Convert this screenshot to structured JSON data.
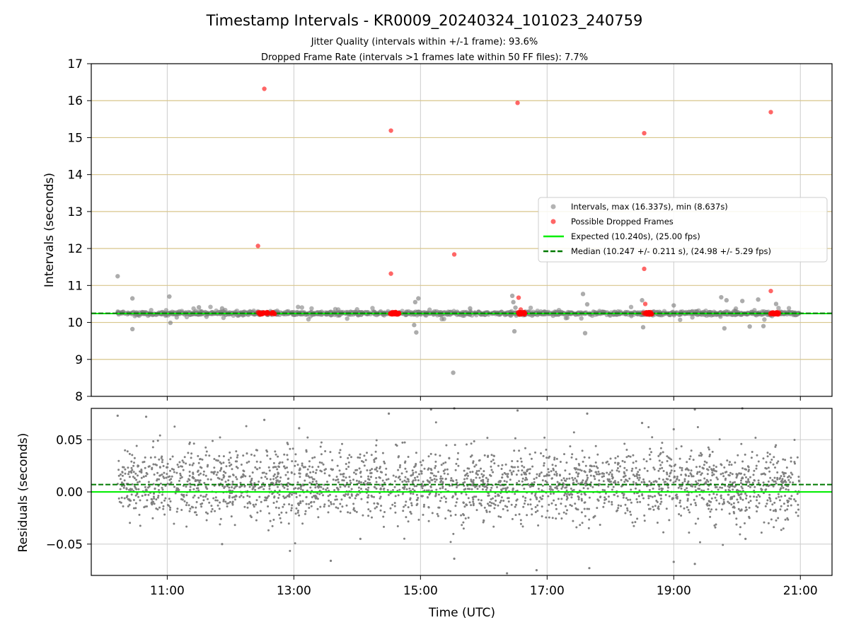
{
  "title": "Timestamp Intervals - KR0009_20240324_101023_240759",
  "subtitle_lines": [
    "Jitter Quality (intervals within +/-1 frame): 93.6%",
    "Dropped Frame Rate (intervals >1 frames late within 50 FF files): 7.7%"
  ],
  "colors": {
    "intervals": "#808080",
    "dropped": "#ff0000",
    "expected": "#00ee00",
    "median": "#007a00",
    "hgrid_top": "#d8c68c",
    "grid": "#cccccc"
  },
  "chart_data": [
    {
      "type": "scatter",
      "ylabel": "Intervals (seconds)",
      "ylim": [
        8,
        17
      ],
      "yticks": [
        "8",
        "9",
        "10",
        "11",
        "12",
        "13",
        "14",
        "15",
        "16",
        "17"
      ],
      "xlim": [
        "09:48",
        "21:30"
      ],
      "grid": true,
      "legend_position": "center-right",
      "legend": [
        "Intervals, max (16.337s), min (8.637s)",
        "Possible Dropped Frames",
        "Expected (10.240s), (25.00 fps)",
        "Median (10.247 +/- 0.211 s), (24.98 +/- 5.29 fps)"
      ],
      "expected": 10.24,
      "median": 10.247,
      "series": [
        {
          "name": "Possible Dropped Frames",
          "x": [
            "12:26",
            "12:32",
            "14:32",
            "14:32",
            "15:32",
            "16:32",
            "16:33",
            "16:35",
            "18:32",
            "18:32",
            "18:33",
            "20:32",
            "20:32"
          ],
          "y": [
            12.07,
            16.32,
            15.19,
            11.32,
            11.84,
            15.94,
            10.67,
            10.35,
            15.12,
            11.45,
            10.5,
            15.69,
            10.85
          ]
        },
        {
          "name": "Intervals, max (16.337s), min (8.637s)",
          "x": [
            "10:13",
            "10:27",
            "10:27",
            "11:02",
            "11:03",
            "11:30",
            "11:52",
            "14:54",
            "14:56",
            "14:58",
            "14:55",
            "15:31",
            "15:47",
            "16:27",
            "16:28",
            "16:29",
            "16:30",
            "17:34",
            "17:38",
            "17:36",
            "18:30",
            "18:31",
            "19:00",
            "19:45",
            "19:48",
            "19:50",
            "20:05",
            "20:12",
            "20:20",
            "20:25",
            "20:37"
          ],
          "y": [
            11.25,
            10.65,
            9.82,
            10.7,
            9.99,
            10.41,
            10.38,
            9.93,
            9.73,
            10.65,
            10.55,
            8.64,
            10.38,
            10.72,
            10.55,
            9.76,
            10.4,
            10.77,
            10.49,
            9.71,
            10.6,
            9.87,
            10.46,
            10.68,
            9.84,
            10.6,
            10.58,
            9.89,
            10.62,
            9.9,
            10.5
          ]
        }
      ]
    },
    {
      "type": "scatter",
      "xlabel": "Time (UTC)",
      "ylabel": "Residuals (seconds)",
      "ylim": [
        -0.08,
        0.08
      ],
      "yticks": [
        "−0.05",
        "0.00",
        "0.05"
      ],
      "xticks": [
        "11:00",
        "13:00",
        "15:00",
        "17:00",
        "19:00",
        "21:00"
      ],
      "xlim": [
        "09:48",
        "21:30"
      ],
      "grid": true,
      "expected": 0.0,
      "median": 0.007,
      "series": [
        {
          "name": "Residuals",
          "x": [
            "10:13",
            "10:40",
            "12:32",
            "13:05",
            "14:30",
            "15:10",
            "15:32",
            "16:32",
            "17:38",
            "18:30",
            "19:00",
            "19:20",
            "20:05",
            "11:52",
            "13:35",
            "14:03",
            "15:32",
            "16:22",
            "16:50",
            "17:40",
            "19:00",
            "19:20",
            "20:08"
          ],
          "y": [
            0.073,
            0.072,
            0.069,
            0.061,
            0.075,
            0.079,
            0.08,
            0.078,
            0.075,
            0.066,
            0.06,
            0.079,
            0.08,
            -0.05,
            -0.066,
            -0.045,
            -0.064,
            -0.078,
            -0.075,
            -0.073,
            -0.067,
            -0.069,
            -0.045
          ]
        }
      ]
    }
  ]
}
